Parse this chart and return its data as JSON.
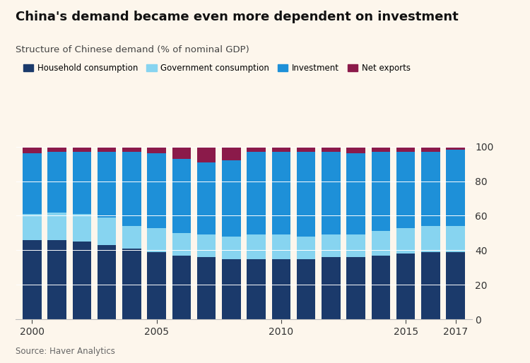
{
  "title": "China's demand became even more dependent on investment",
  "subtitle": "Structure of Chinese demand (% of nominal GDP)",
  "source": "Source: Haver Analytics",
  "years": [
    2000,
    2001,
    2002,
    2003,
    2004,
    2005,
    2006,
    2007,
    2008,
    2009,
    2010,
    2011,
    2012,
    2013,
    2014,
    2015,
    2016,
    2017
  ],
  "household_consumption": [
    46,
    46,
    45,
    43,
    41,
    39,
    37,
    36,
    35,
    35,
    35,
    35,
    36,
    36,
    37,
    38,
    39,
    39
  ],
  "government_consumption": [
    15,
    16,
    16,
    16,
    13,
    14,
    13,
    13,
    13,
    14,
    14,
    13,
    13,
    13,
    14,
    15,
    15,
    15
  ],
  "investment": [
    35,
    35,
    36,
    38,
    43,
    43,
    43,
    42,
    44,
    48,
    48,
    49,
    48,
    47,
    46,
    44,
    43,
    44
  ],
  "net_exports": [
    4,
    3,
    3,
    3,
    3,
    4,
    7,
    9,
    8,
    3,
    3,
    3,
    3,
    4,
    3,
    3,
    3,
    2
  ],
  "colors": {
    "household_consumption": "#1b3a6b",
    "government_consumption": "#87d4f0",
    "investment": "#1e90d8",
    "net_exports": "#8b1a4a"
  },
  "legend_labels": [
    "Household consumption",
    "Government consumption",
    "Investment",
    "Net exports"
  ],
  "background_color": "#fdf6ec",
  "ylim": [
    0,
    105
  ],
  "yticks": [
    0,
    20,
    40,
    60,
    80,
    100
  ],
  "bar_width": 0.75,
  "tick_years": [
    2000,
    2005,
    2010,
    2015,
    2017
  ]
}
